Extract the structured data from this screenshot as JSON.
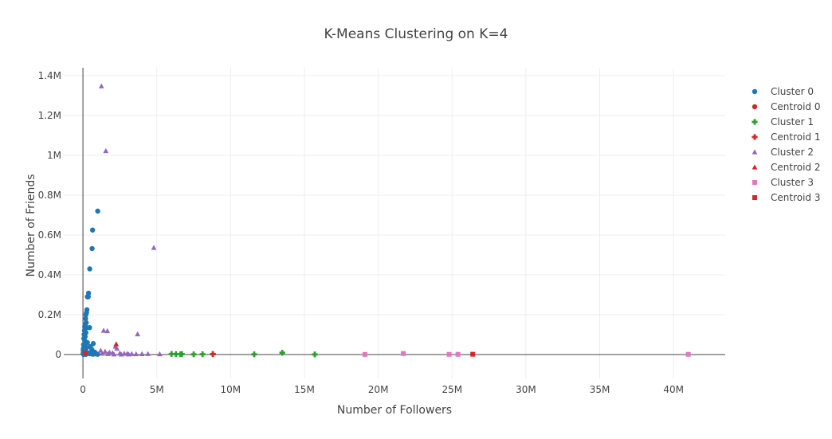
{
  "chart_data": {
    "type": "scatter",
    "title": "K-Means Clustering on K=4",
    "xlabel": "Number of Followers",
    "ylabel": "Number of Friends",
    "xlim": [
      -1300000,
      43500000
    ],
    "ylim": [
      -120000,
      1440000
    ],
    "x_ticks": [
      0,
      5000000,
      10000000,
      15000000,
      20000000,
      25000000,
      30000000,
      35000000,
      40000000
    ],
    "x_tick_labels": [
      "0",
      "5M",
      "10M",
      "15M",
      "20M",
      "25M",
      "30M",
      "35M",
      "40M"
    ],
    "y_ticks": [
      0,
      200000,
      400000,
      600000,
      800000,
      1000000,
      1200000,
      1400000
    ],
    "y_tick_labels": [
      "0",
      "0.2M",
      "0.4M",
      "0.6M",
      "0.8M",
      "1M",
      "1.2M",
      "1.4M"
    ],
    "grid": true,
    "legend_position": "top-right",
    "series": [
      {
        "name": "Cluster 0",
        "marker": "circle",
        "color": "#1f77b4",
        "points": [
          [
            1000000,
            720000
          ],
          [
            650000,
            625000
          ],
          [
            620000,
            532000
          ],
          [
            460000,
            430000
          ],
          [
            380000,
            308000
          ],
          [
            300000,
            290000
          ],
          [
            360000,
            290000
          ],
          [
            270000,
            225000
          ],
          [
            240000,
            210000
          ],
          [
            200000,
            200000
          ],
          [
            180000,
            180000
          ],
          [
            220000,
            160000
          ],
          [
            150000,
            150000
          ],
          [
            120000,
            140000
          ],
          [
            250000,
            135000
          ],
          [
            450000,
            135000
          ],
          [
            100000,
            120000
          ],
          [
            200000,
            110000
          ],
          [
            80000,
            100000
          ],
          [
            150000,
            90000
          ],
          [
            60000,
            80000
          ],
          [
            120000,
            70000
          ],
          [
            300000,
            60000
          ],
          [
            700000,
            55000
          ],
          [
            40000,
            50000
          ],
          [
            90000,
            45000
          ],
          [
            500000,
            40000
          ],
          [
            250000,
            35000
          ],
          [
            30000,
            30000
          ],
          [
            600000,
            25000
          ],
          [
            20000,
            20000
          ],
          [
            180000,
            18000
          ],
          [
            50000,
            15000
          ],
          [
            800000,
            12000
          ],
          [
            100000,
            10000
          ],
          [
            350000,
            8000
          ],
          [
            10000,
            5000
          ],
          [
            450000,
            4000
          ],
          [
            900000,
            3000
          ],
          [
            700000,
            2000
          ],
          [
            200000,
            1000
          ],
          [
            50000,
            500
          ],
          [
            1000000,
            1500
          ],
          [
            600000,
            3000
          ]
        ]
      },
      {
        "name": "Centroid 0",
        "marker": "circle",
        "color": "#d62728",
        "points": [
          [
            150000,
            8000
          ]
        ]
      },
      {
        "name": "Cluster 1",
        "marker": "cross",
        "color": "#2ca02c",
        "points": [
          [
            6000000,
            3000
          ],
          [
            6300000,
            2000
          ],
          [
            6600000,
            1500
          ],
          [
            6700000,
            2500
          ],
          [
            7500000,
            1000
          ],
          [
            8100000,
            1500
          ],
          [
            8800000,
            2000
          ],
          [
            11600000,
            1000
          ],
          [
            13500000,
            9000
          ],
          [
            15700000,
            500
          ]
        ]
      },
      {
        "name": "Centroid 1",
        "marker": "cross",
        "color": "#d62728",
        "points": [
          [
            8800000,
            2500
          ]
        ]
      },
      {
        "name": "Cluster 2",
        "marker": "triangle",
        "color": "#9467bd",
        "points": [
          [
            1250000,
            1347000
          ],
          [
            1550000,
            1022000
          ],
          [
            4800000,
            536000
          ],
          [
            1400000,
            120000
          ],
          [
            1650000,
            118000
          ],
          [
            3700000,
            102000
          ],
          [
            2200000,
            40000
          ],
          [
            2300000,
            30000
          ],
          [
            1200000,
            20000
          ],
          [
            1500000,
            15000
          ],
          [
            1800000,
            10000
          ],
          [
            2000000,
            8000
          ],
          [
            2500000,
            6000
          ],
          [
            2800000,
            5000
          ],
          [
            3000000,
            4000
          ],
          [
            3300000,
            3000
          ],
          [
            3600000,
            2000
          ],
          [
            4000000,
            2500
          ],
          [
            4400000,
            3000
          ],
          [
            5200000,
            2000
          ],
          [
            1300000,
            5000
          ],
          [
            1700000,
            3000
          ],
          [
            2100000,
            1000
          ],
          [
            2600000,
            500
          ],
          [
            3100000,
            800
          ]
        ]
      },
      {
        "name": "Centroid 2",
        "marker": "triangle",
        "color": "#d62728",
        "points": [
          [
            2250000,
            52000
          ]
        ]
      },
      {
        "name": "Cluster 3",
        "marker": "square",
        "color": "#e377c2",
        "points": [
          [
            19100000,
            500
          ],
          [
            21700000,
            5000
          ],
          [
            24800000,
            1000
          ],
          [
            25400000,
            1000
          ],
          [
            41000000,
            1000
          ]
        ]
      },
      {
        "name": "Centroid 3",
        "marker": "square",
        "color": "#d62728",
        "points": [
          [
            26400000,
            1500
          ]
        ]
      }
    ]
  }
}
